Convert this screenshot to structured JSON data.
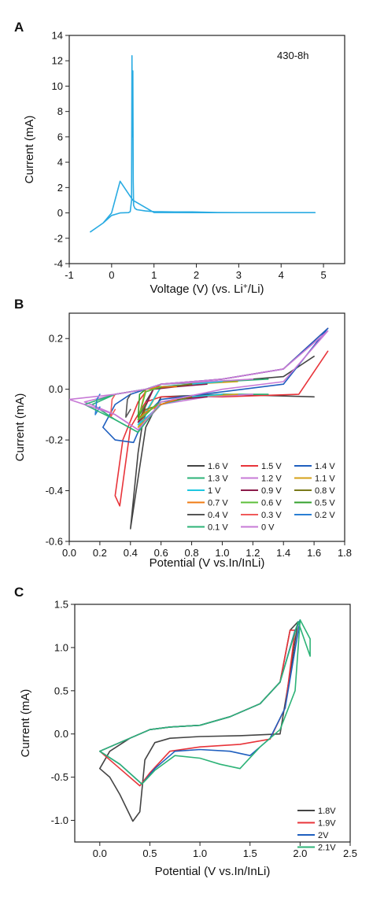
{
  "chart_data": [
    {
      "panel": "A",
      "type": "line",
      "annotation": "430-8h",
      "xlabel": "Voltage (V) (vs. Li",
      "xlabel_sup": "+",
      "xlabel_end": "/Li)",
      "ylabel": "Current (mA)",
      "xlim": [
        -1,
        5.5
      ],
      "ylim": [
        -4,
        14
      ],
      "xticks": [
        -1,
        0,
        1,
        2,
        3,
        4,
        5
      ],
      "yticks": [
        -4,
        -2,
        0,
        2,
        4,
        6,
        8,
        10,
        12,
        14
      ],
      "series": [
        {
          "color": "#29abe2",
          "x": [
            -0.5,
            -0.2,
            0.0,
            0.2,
            0.4,
            0.44,
            0.47,
            0.48,
            0.49,
            0.5,
            0.51,
            0.52,
            0.55,
            0.6,
            0.8,
            1.0,
            1.5,
            1.9,
            2.5,
            3.0,
            4.0,
            4.8,
            4.0,
            3.0,
            2.0,
            1.0,
            0.5,
            0.2,
            0.0,
            -0.2,
            -0.5
          ],
          "y": [
            -1.5,
            -0.8,
            -0.2,
            0.0,
            0.02,
            0.1,
            1.0,
            12.4,
            6.0,
            11.2,
            2.5,
            0.6,
            0.35,
            0.25,
            0.15,
            0.1,
            0.08,
            0.08,
            0.03,
            0.02,
            0.02,
            0.02,
            0.02,
            0.02,
            0.02,
            0.03,
            1.0,
            2.5,
            0.0,
            -0.8,
            -1.5
          ]
        }
      ]
    },
    {
      "panel": "B",
      "type": "line",
      "xlabel": "Potential (V vs.In/InLi)",
      "ylabel": "Current (mA)",
      "xlim": [
        0,
        1.8
      ],
      "ylim": [
        -0.6,
        0.3
      ],
      "xticks": [
        0.0,
        0.2,
        0.4,
        0.6,
        0.8,
        1.0,
        1.2,
        1.4,
        1.6,
        1.8
      ],
      "yticks": [
        -0.6,
        -0.4,
        -0.2,
        0.0,
        0.2
      ],
      "legend_position": "bottom-right",
      "series": [
        {
          "name": "1.6 V",
          "color": "#444444",
          "x": [
            1.6,
            1.0,
            0.6,
            0.5,
            0.45,
            0.4,
            0.45,
            0.5,
            0.55,
            0.6,
            1.0,
            1.4,
            1.6
          ],
          "y": [
            -0.03,
            -0.02,
            -0.03,
            -0.15,
            -0.35,
            -0.55,
            -0.25,
            -0.05,
            0.0,
            0.02,
            0.03,
            0.05,
            0.13
          ]
        },
        {
          "name": "1.5 V",
          "color": "#e8343a",
          "x": [
            1.69,
            1.5,
            1.0,
            0.6,
            0.5,
            0.4,
            0.33,
            0.3,
            0.35,
            0.45,
            0.5,
            0.55,
            0.6,
            1.0,
            1.4,
            1.69
          ],
          "y": [
            0.15,
            -0.02,
            -0.03,
            -0.03,
            -0.05,
            -0.15,
            -0.46,
            -0.42,
            -0.2,
            -0.05,
            -0.01,
            0.0,
            0.02,
            0.04,
            0.08,
            0.24
          ]
        },
        {
          "name": "1.4 V",
          "color": "#1f5fbf",
          "x": [
            1.69,
            1.4,
            1.0,
            0.6,
            0.5,
            0.42,
            0.3,
            0.22,
            0.3,
            0.4,
            0.5,
            0.55,
            0.6,
            1.0,
            1.4,
            1.69
          ],
          "y": [
            0.24,
            0.02,
            -0.01,
            -0.04,
            -0.1,
            -0.21,
            -0.2,
            -0.15,
            -0.06,
            -0.02,
            0.0,
            0.01,
            0.02,
            0.04,
            0.08,
            0.24
          ]
        },
        {
          "name": "1.3 V",
          "color": "#2db377",
          "x": [
            1.3,
            1.0,
            0.6,
            0.45,
            0.3,
            0.15,
            0.3,
            0.5,
            0.6,
            1.0,
            1.3
          ],
          "y": [
            -0.02,
            -0.02,
            -0.05,
            -0.17,
            -0.12,
            -0.06,
            -0.02,
            0.0,
            0.02,
            0.03,
            0.04
          ]
        },
        {
          "name": "1.2 V",
          "color": "#c77ad6",
          "x": [
            1.2,
            0.9,
            0.6,
            0.45,
            0.3,
            0.1,
            0.3,
            0.5,
            0.6,
            0.9,
            1.2
          ],
          "y": [
            -0.02,
            -0.03,
            -0.06,
            -0.16,
            -0.1,
            -0.05,
            -0.02,
            0.0,
            0.02,
            0.03,
            0.04
          ]
        },
        {
          "name": "1.1 V",
          "color": "#d4a017",
          "x": [
            1.1,
            0.8,
            0.6,
            0.45,
            0.6,
            0.8,
            1.1
          ],
          "y": [
            -0.02,
            -0.03,
            -0.06,
            -0.15,
            0.01,
            0.02,
            0.03
          ]
        },
        {
          "name": "1 V",
          "color": "#1ec7e0",
          "x": [
            1.0,
            0.8,
            0.6,
            0.45,
            0.6,
            0.8,
            1.0
          ],
          "y": [
            -0.02,
            -0.03,
            -0.06,
            -0.14,
            0.01,
            0.02,
            0.03
          ]
        },
        {
          "name": "0.9 V",
          "color": "#8b1a4a",
          "x": [
            0.9,
            0.7,
            0.55,
            0.45,
            0.55,
            0.7,
            0.9
          ],
          "y": [
            -0.03,
            -0.04,
            -0.07,
            -0.13,
            0.0,
            0.01,
            0.02
          ]
        },
        {
          "name": "0.8 V",
          "color": "#7a7a1a",
          "x": [
            0.8,
            0.65,
            0.5,
            0.45,
            0.5,
            0.65,
            0.8
          ],
          "y": [
            -0.03,
            -0.05,
            -0.08,
            -0.12,
            0.0,
            0.01,
            0.02
          ]
        },
        {
          "name": "0.7 V",
          "color": "#f07b13",
          "x": [
            0.7,
            0.6,
            0.5,
            0.45,
            0.5,
            0.6,
            0.7
          ],
          "y": [
            -0.04,
            -0.06,
            -0.09,
            -0.12,
            0.0,
            0.01,
            0.01
          ]
        },
        {
          "name": "0.6 V",
          "color": "#5cbf3a",
          "x": [
            0.6,
            0.55,
            0.5,
            0.45,
            0.5,
            0.55,
            0.6
          ],
          "y": [
            -0.05,
            -0.07,
            -0.1,
            -0.12,
            -0.01,
            0.0,
            0.01
          ]
        },
        {
          "name": "0.5 V",
          "color": "#33a02c",
          "x": [
            0.5,
            0.48,
            0.46,
            0.45,
            0.46,
            0.48,
            0.5
          ],
          "y": [
            -0.06,
            -0.08,
            -0.1,
            -0.11,
            -0.02,
            -0.01,
            0.0
          ]
        },
        {
          "name": "0.4 V",
          "color": "#555555",
          "x": [
            0.4,
            0.38,
            0.37,
            0.38,
            0.4
          ],
          "y": [
            -0.08,
            -0.1,
            -0.11,
            -0.04,
            -0.02
          ]
        },
        {
          "name": "0.3 V",
          "color": "#f05a5a",
          "x": [
            0.3,
            0.28,
            0.27,
            0.28,
            0.3
          ],
          "y": [
            -0.08,
            -0.1,
            -0.11,
            -0.04,
            -0.02
          ]
        },
        {
          "name": "0.2 V",
          "color": "#2a7fd4",
          "x": [
            0.2,
            0.18,
            0.17,
            0.18,
            0.2
          ],
          "y": [
            -0.07,
            -0.09,
            -0.1,
            -0.04,
            -0.02
          ]
        },
        {
          "name": "0.1 V",
          "color": "#2db377",
          "x": [
            0.6,
            0.45,
            0.3,
            0.1,
            0.3,
            0.5,
            0.6
          ],
          "y": [
            -0.05,
            -0.17,
            -0.12,
            -0.06,
            -0.02,
            0.0,
            0.02
          ]
        },
        {
          "name": "0 V",
          "color": "#c77ad6",
          "x": [
            1.69,
            1.4,
            1.0,
            0.6,
            0.45,
            0.3,
            0.0,
            0.3,
            0.5,
            0.6,
            1.0,
            1.4,
            1.69
          ],
          "y": [
            0.23,
            0.03,
            0.0,
            -0.05,
            -0.16,
            -0.1,
            -0.04,
            -0.02,
            0.0,
            0.02,
            0.04,
            0.08,
            0.23
          ]
        }
      ]
    },
    {
      "panel": "C",
      "type": "line",
      "xlabel": "Potential (V vs.In/InLi)",
      "ylabel": "Current (mA)",
      "xlim": [
        -0.25,
        2.5
      ],
      "ylim": [
        -1.25,
        1.5
      ],
      "xticks": [
        0.0,
        0.5,
        1.0,
        1.5,
        2.0,
        2.5
      ],
      "yticks": [
        -1.0,
        -0.5,
        0.0,
        0.5,
        1.0,
        1.5
      ],
      "legend_position": "bottom-right",
      "series": [
        {
          "name": "1.8V",
          "color": "#444444",
          "x": [
            0.0,
            0.1,
            0.2,
            0.33,
            0.4,
            0.45,
            0.55,
            0.7,
            1.0,
            1.4,
            1.6,
            1.8,
            1.9,
            1.98,
            1.9,
            1.8,
            1.6,
            1.3,
            1.0,
            0.7,
            0.5,
            0.3,
            0.1,
            0.0
          ],
          "y": [
            -0.4,
            -0.5,
            -0.7,
            -1.01,
            -0.9,
            -0.3,
            -0.1,
            -0.05,
            -0.03,
            -0.02,
            -0.01,
            0.0,
            0.7,
            1.3,
            1.2,
            0.6,
            0.35,
            0.2,
            0.1,
            0.08,
            0.05,
            -0.05,
            -0.2,
            -0.4
          ]
        },
        {
          "name": "1.9V",
          "color": "#e8343a",
          "x": [
            0.0,
            0.2,
            0.4,
            0.5,
            0.7,
            1.0,
            1.4,
            1.7,
            1.85,
            1.95,
            1.9,
            1.8,
            1.6,
            1.3,
            1.0,
            0.7,
            0.5,
            0.3,
            0.1,
            0.0
          ],
          "y": [
            -0.2,
            -0.4,
            -0.6,
            -0.45,
            -0.2,
            -0.15,
            -0.12,
            -0.06,
            0.3,
            1.2,
            1.2,
            0.6,
            0.35,
            0.2,
            0.1,
            0.08,
            0.05,
            -0.05,
            -0.15,
            -0.2
          ]
        },
        {
          "name": "2V",
          "color": "#1f5fbf",
          "x": [
            0.0,
            0.2,
            0.42,
            0.55,
            0.75,
            1.0,
            1.3,
            1.5,
            1.7,
            1.85,
            2.0,
            1.95,
            1.8,
            1.6,
            1.3,
            1.0,
            0.7,
            0.5,
            0.3,
            0.1,
            0.0
          ],
          "y": [
            -0.2,
            -0.35,
            -0.58,
            -0.4,
            -0.2,
            -0.18,
            -0.2,
            -0.25,
            -0.05,
            0.3,
            1.32,
            1.2,
            0.6,
            0.35,
            0.2,
            0.1,
            0.08,
            0.05,
            -0.05,
            -0.15,
            -0.2
          ]
        },
        {
          "name": "2.1V",
          "color": "#2db377",
          "x": [
            0.0,
            0.2,
            0.42,
            0.55,
            0.75,
            1.0,
            1.2,
            1.4,
            1.6,
            1.8,
            1.95,
            2.0,
            2.1,
            2.1,
            1.98,
            1.8,
            1.6,
            1.3,
            1.0,
            0.7,
            0.5,
            0.3,
            0.1,
            0.0
          ],
          "y": [
            -0.2,
            -0.35,
            -0.58,
            -0.42,
            -0.25,
            -0.28,
            -0.35,
            -0.4,
            -0.15,
            0.05,
            0.5,
            1.32,
            1.1,
            0.9,
            1.3,
            0.6,
            0.35,
            0.2,
            0.1,
            0.08,
            0.05,
            -0.05,
            -0.15,
            -0.2
          ]
        }
      ]
    }
  ]
}
